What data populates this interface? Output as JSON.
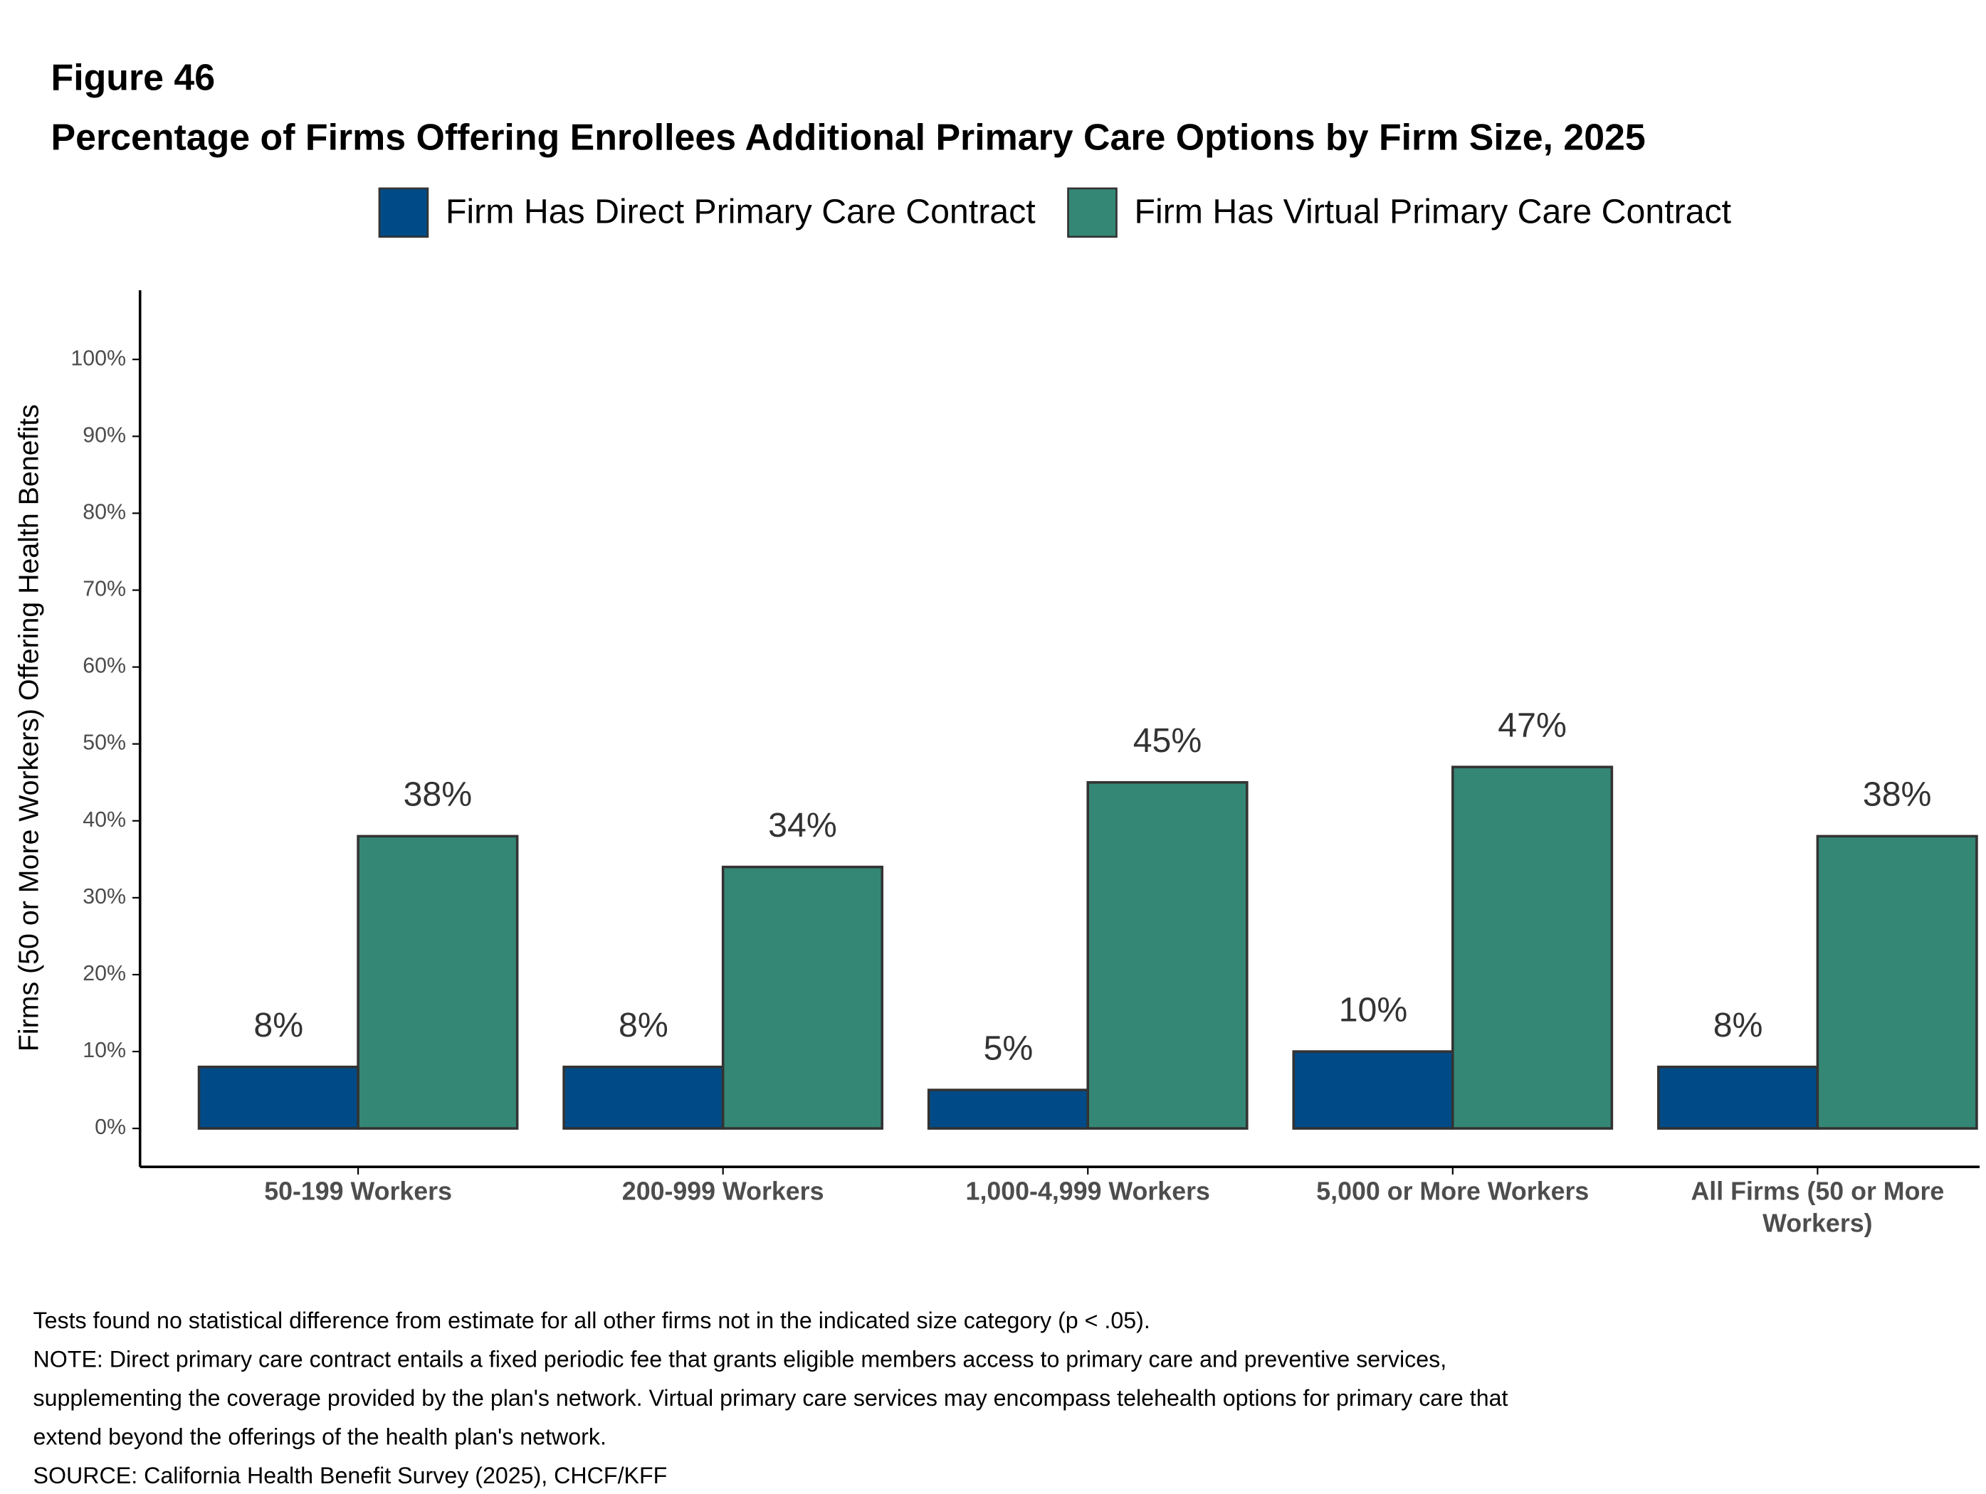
{
  "chart_data": {
    "type": "bar",
    "figure_label": "Figure 46",
    "title": "Percentage of Firms Offering Enrollees Additional Primary Care Options by Firm Size, 2025",
    "y_label": "Firms (50 or More Workers) Offering Health Benefits",
    "categories": [
      "50-199 Workers",
      "200-999 Workers",
      "1,000-4,999 Workers",
      "5,000 or More Workers",
      "All Firms (50 or More Workers)"
    ],
    "series": [
      {
        "name": "Firm Has Direct Primary Care Contract",
        "color": "#004b87",
        "values": [
          8,
          8,
          5,
          10,
          8
        ],
        "value_labels": [
          "8%",
          "8%",
          "5%",
          "10%",
          "8%"
        ]
      },
      {
        "name": "Firm Has Virtual Primary Care Contract",
        "color": "#348775",
        "values": [
          38,
          34,
          45,
          47,
          38
        ],
        "value_labels": [
          "38%",
          "34%",
          "45%",
          "47%",
          "38%"
        ]
      }
    ],
    "ylim": [
      -5,
      109
    ],
    "yticks": [
      {
        "value": 0,
        "label": "0%"
      },
      {
        "value": 10,
        "label": "10%"
      },
      {
        "value": 20,
        "label": "20%"
      },
      {
        "value": 30,
        "label": "30%"
      },
      {
        "value": 40,
        "label": "40%"
      },
      {
        "value": 50,
        "label": "50%"
      },
      {
        "value": 60,
        "label": "60%"
      },
      {
        "value": 70,
        "label": "70%"
      },
      {
        "value": 80,
        "label": "80%"
      },
      {
        "value": 90,
        "label": "90%"
      },
      {
        "value": 100,
        "label": "100%"
      }
    ],
    "legend": "top",
    "notes": [
      "Tests found no statistical difference from estimate for all other firms not in the indicated size category (p < .05).",
      "NOTE: Direct primary care contract entails a fixed periodic fee that grants eligible members access to primary care and preventive services,",
      "supplementing the coverage provided by the plan's network. Virtual primary care services may encompass telehealth options for primary care that",
      "extend beyond the offerings of the health plan's network.",
      "SOURCE: California Health Benefit Survey (2025), CHCF/KFF"
    ]
  }
}
